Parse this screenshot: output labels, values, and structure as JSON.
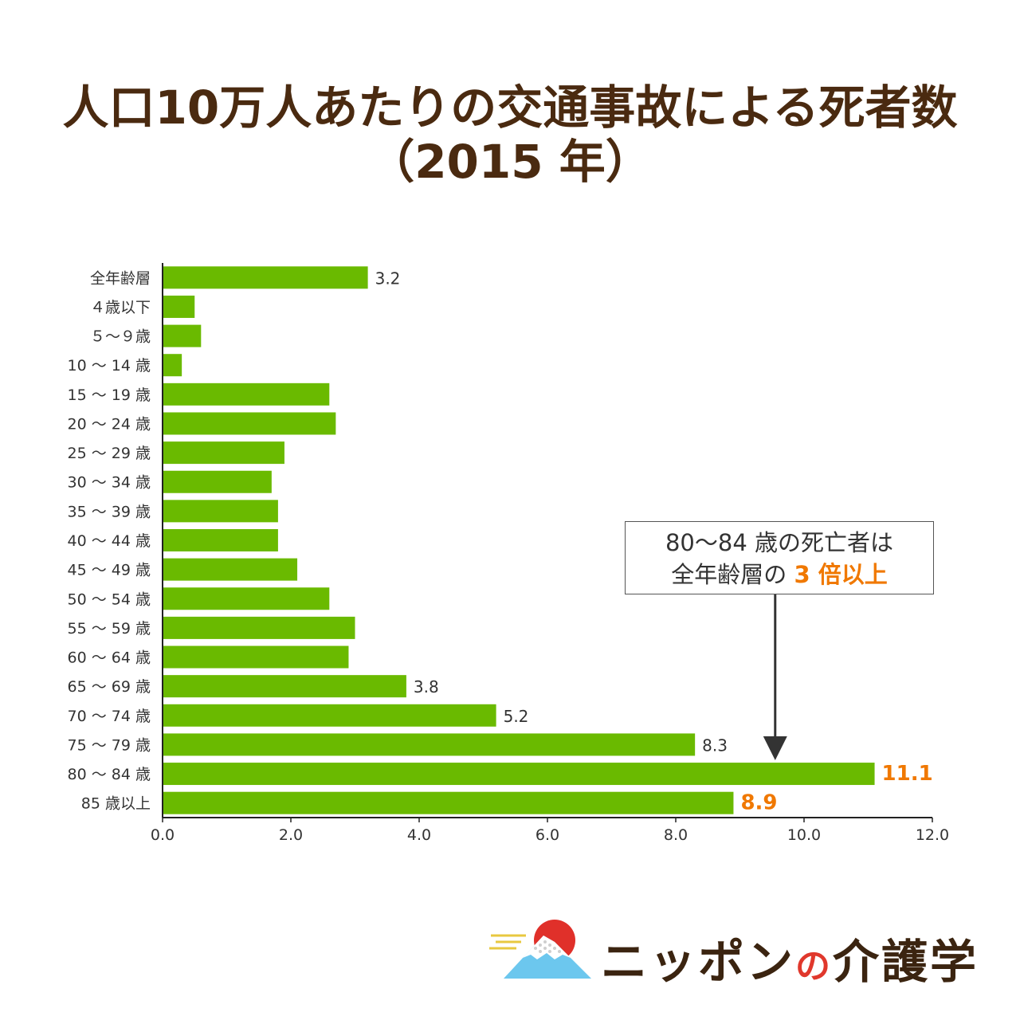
{
  "title": {
    "line1": "人口10万人あたりの交通事故による死者数",
    "line2": "（2015 年）"
  },
  "callout": {
    "line1": "80～84 歳の死亡者は",
    "line2_prefix": "全年齢層の ",
    "line2_highlight": "3 倍以上"
  },
  "logo": {
    "text_a": "ニッポン",
    "text_b": "の",
    "text_c": "介護学",
    "icon": "mount-fuji-sun-icon"
  },
  "colors": {
    "bar": "#6aba00",
    "highlight": "#f07800",
    "title": "#4a2a10",
    "axis": "#222222"
  },
  "chart_data": {
    "type": "bar",
    "orientation": "horizontal",
    "title": "人口10万人あたりの交通事故による死者数（2015 年）",
    "categories": [
      "全年齢層",
      "４歳以下",
      "５～９歳",
      "10 ～ 14 歳",
      "15 ～ 19 歳",
      "20 ～ 24 歳",
      "25 ～ 29 歳",
      "30 ～ 34 歳",
      "35 ～ 39 歳",
      "40 ～ 44 歳",
      "45 ～ 49 歳",
      "50 ～ 54 歳",
      "55 ～ 59 歳",
      "60 ～ 64 歳",
      "65 ～ 69 歳",
      "70 ～ 74 歳",
      "75 ～ 79 歳",
      "80 ～ 84 歳",
      "85 歳以上"
    ],
    "values": [
      3.2,
      0.5,
      0.6,
      0.3,
      2.6,
      2.7,
      1.9,
      1.7,
      1.8,
      1.8,
      2.1,
      2.6,
      3.0,
      2.9,
      3.8,
      5.2,
      8.3,
      11.1,
      8.9
    ],
    "data_labels": [
      {
        "index": 0,
        "text": "3.2",
        "highlight": false
      },
      {
        "index": 14,
        "text": "3.8",
        "highlight": false
      },
      {
        "index": 15,
        "text": "5.2",
        "highlight": false
      },
      {
        "index": 16,
        "text": "8.3",
        "highlight": false
      },
      {
        "index": 17,
        "text": "11.1",
        "highlight": true
      },
      {
        "index": 18,
        "text": "8.9",
        "highlight": true
      }
    ],
    "xlim": [
      0,
      12
    ],
    "xticks": [
      "0.0",
      "2.0",
      "4.0",
      "6.0",
      "8.0",
      "10.0",
      "12.0"
    ],
    "grid": false,
    "legend": "none"
  }
}
